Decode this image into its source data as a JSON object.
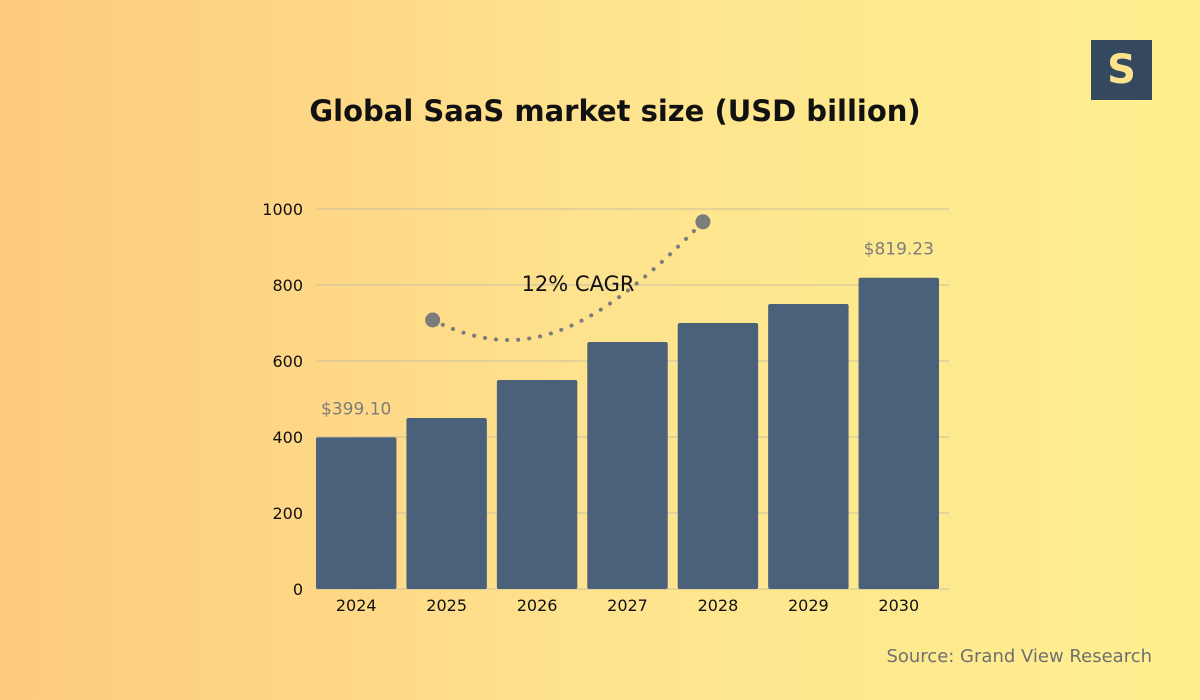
{
  "logo": {
    "letter": "S"
  },
  "source": "Source: Grand View Research",
  "chart_data": {
    "type": "bar",
    "title": "Global SaaS market size (USD billion)",
    "xlabel": "",
    "ylabel": "",
    "categories": [
      "2024",
      "2025",
      "2026",
      "2027",
      "2028",
      "2029",
      "2030"
    ],
    "values": [
      399.1,
      450,
      550,
      650,
      700,
      750,
      819.23
    ],
    "ylim": [
      0,
      1000
    ],
    "yticks": [
      0,
      200,
      400,
      600,
      800,
      1000
    ],
    "data_labels": [
      {
        "category": "2024",
        "text": "$399.10"
      },
      {
        "category": "2030",
        "text": "$819.23"
      }
    ],
    "annotation": {
      "text": "12% CAGR",
      "style": "dotted-curve-arrow"
    },
    "grid": true,
    "legend": "none",
    "colors": {
      "bar": "#4b6179",
      "grid": "#c9bf9f",
      "label": "#7d7d7d",
      "arrow": "#7c7c7c"
    }
  }
}
